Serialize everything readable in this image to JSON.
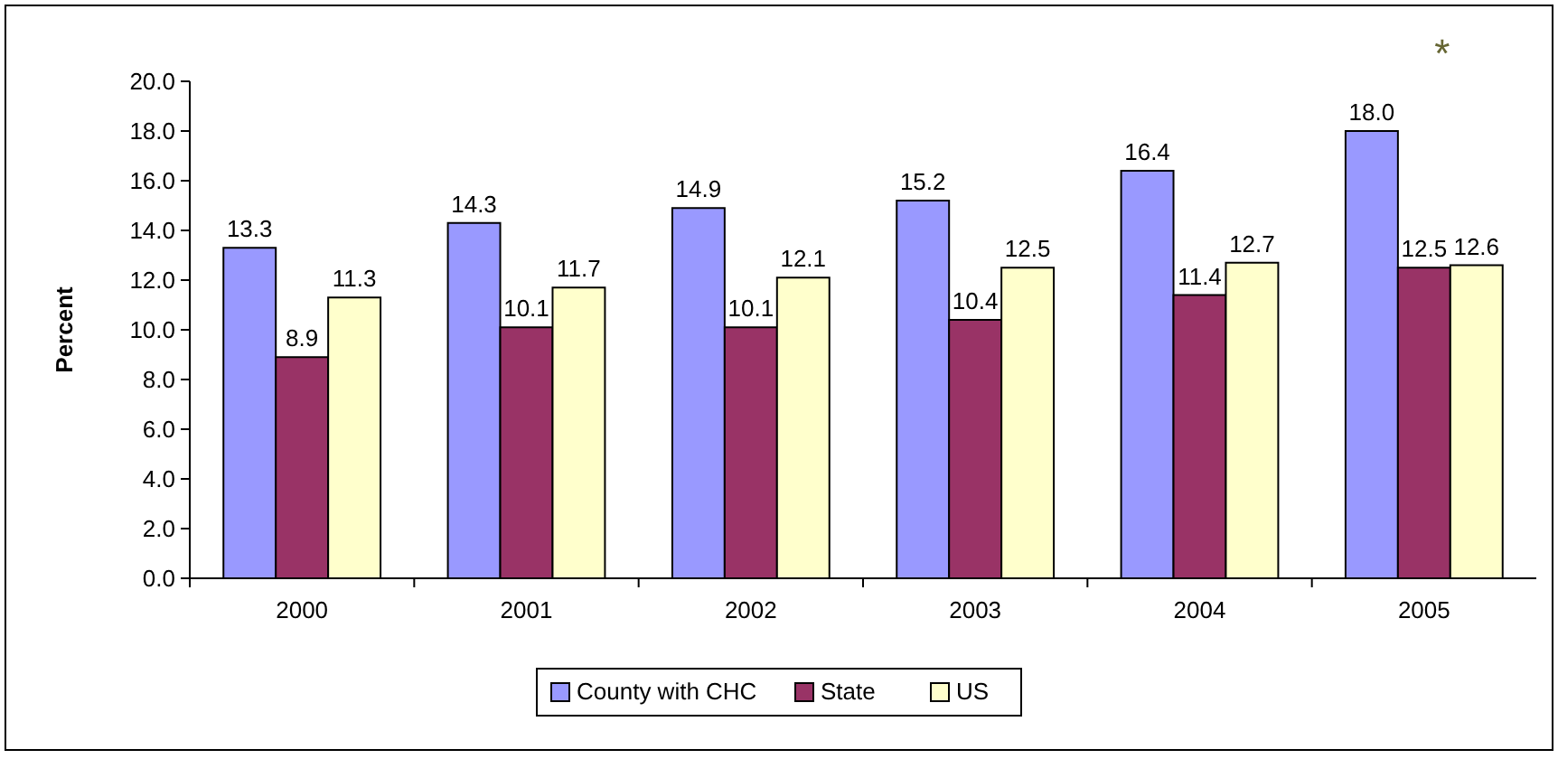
{
  "chart_data": {
    "type": "bar",
    "ylabel": "Percent",
    "categories": [
      "2000",
      "2001",
      "2002",
      "2003",
      "2004",
      "2005"
    ],
    "series": [
      {
        "name": "County with CHC",
        "color": "#9999ff",
        "values": [
          13.3,
          14.3,
          14.9,
          15.2,
          16.4,
          18.0
        ],
        "value_labels": [
          "13.3",
          "14.3",
          "14.9",
          "15.2",
          "16.4",
          "18.0"
        ]
      },
      {
        "name": "State",
        "color": "#993366",
        "values": [
          8.9,
          10.1,
          10.1,
          10.4,
          11.4,
          12.5
        ],
        "value_labels": [
          "8.9",
          "10.1",
          "10.1",
          "10.4",
          "11.4",
          "12.5"
        ]
      },
      {
        "name": "US",
        "color": "#ffffcc",
        "values": [
          11.3,
          11.7,
          12.1,
          12.5,
          12.7,
          12.6
        ],
        "value_labels": [
          "11.3",
          "11.7",
          "12.1",
          "12.5",
          "12.7",
          "12.6"
        ]
      }
    ],
    "ylim": [
      0,
      20
    ],
    "yticks": [
      {
        "value": 0,
        "label": "0.0"
      },
      {
        "value": 2,
        "label": "2.0"
      },
      {
        "value": 4,
        "label": "4.0"
      },
      {
        "value": 6,
        "label": "6.0"
      },
      {
        "value": 8,
        "label": "8.0"
      },
      {
        "value": 10,
        "label": "10.0"
      },
      {
        "value": 12,
        "label": "12.0"
      },
      {
        "value": 14,
        "label": "14.0"
      },
      {
        "value": 16,
        "label": "16.0"
      },
      {
        "value": 18,
        "label": "18.0"
      },
      {
        "value": 20,
        "label": "20.0"
      }
    ],
    "grid": false,
    "legend": "bottom",
    "annotations": [
      "*"
    ]
  }
}
